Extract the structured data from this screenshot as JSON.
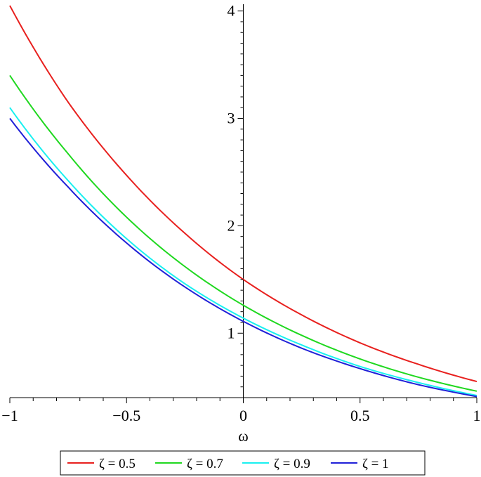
{
  "chart_data": {
    "type": "line",
    "xlabel": "ω",
    "ylabel": "",
    "xlim": [
      -1,
      1
    ],
    "ylim": [
      0.4,
      4.05
    ],
    "x_ticks": [
      {
        "value": -1,
        "label": "−1"
      },
      {
        "value": -0.5,
        "label": "−0.5"
      },
      {
        "value": 0,
        "label": "0"
      },
      {
        "value": 0.5,
        "label": "0.5"
      },
      {
        "value": 1,
        "label": "1"
      }
    ],
    "y_ticks": [
      {
        "value": 1,
        "label": "1"
      },
      {
        "value": 2,
        "label": "2"
      },
      {
        "value": 3,
        "label": "3"
      },
      {
        "value": 4,
        "label": "4"
      }
    ],
    "grid": false,
    "legend_position": "bottom",
    "x": [
      -1,
      -0.75,
      -0.5,
      -0.25,
      0,
      0.25,
      0.5,
      0.75,
      1
    ],
    "series": [
      {
        "name": "ζ = 0.5",
        "color": "#e8201e",
        "values": [
          4.05,
          3.15,
          2.47,
          1.93,
          1.5,
          1.17,
          0.91,
          0.71,
          0.55
        ]
      },
      {
        "name": "ζ = 0.7",
        "color": "#1fd81f",
        "values": [
          3.4,
          2.67,
          2.08,
          1.62,
          1.26,
          0.98,
          0.76,
          0.59,
          0.46
        ]
      },
      {
        "name": "ζ = 0.9",
        "color": "#19f0f0",
        "values": [
          3.1,
          2.42,
          1.88,
          1.46,
          1.14,
          0.89,
          0.69,
          0.54,
          0.42
        ]
      },
      {
        "name": "ζ = 1",
        "color": "#2020d8",
        "values": [
          3.0,
          2.36,
          1.84,
          1.43,
          1.11,
          0.86,
          0.67,
          0.52,
          0.41
        ]
      }
    ]
  }
}
